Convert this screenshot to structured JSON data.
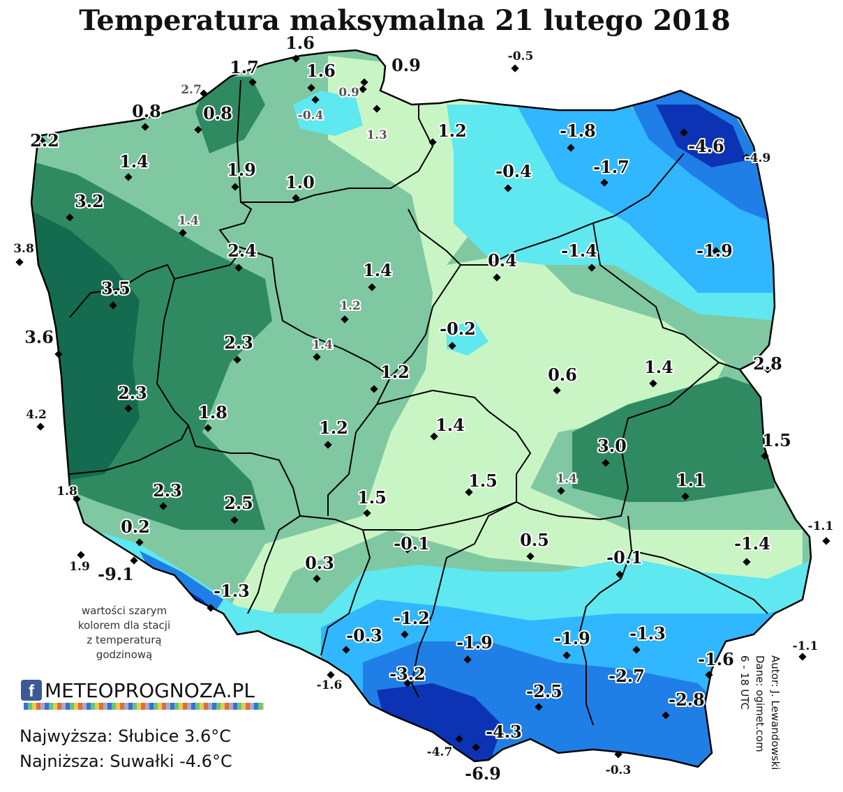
{
  "title": "Temperatura maksymalna 21 lutego 2018",
  "colors": {
    "very_warm": "#156b4f",
    "warm": "#2f8a62",
    "mild_green": "#7fc8a2",
    "light_green": "#c9f5c4",
    "cyan": "#5fe8f0",
    "light_blue": "#31b7ff",
    "blue": "#1f7fe6",
    "dark_blue": "#0b33b4"
  },
  "values": [
    {
      "text": "1.6",
      "style": "normal"
    },
    {
      "text": "1.7",
      "style": "normal"
    },
    {
      "text": "1.6",
      "style": "normal"
    },
    {
      "text": "0.9",
      "style": "normal"
    },
    {
      "text": "-0.5",
      "style": "small"
    },
    {
      "text": "2.7",
      "style": "gray"
    },
    {
      "text": "0.9",
      "style": "gray"
    },
    {
      "text": "0.8",
      "style": "normal"
    },
    {
      "text": "0.8",
      "style": "normal"
    },
    {
      "text": "-0.4",
      "style": "gray"
    },
    {
      "text": "1.3",
      "style": "gray"
    },
    {
      "text": "1.2",
      "style": "normal"
    },
    {
      "text": "-1.8",
      "style": "normal"
    },
    {
      "text": "-4.6",
      "style": "normal"
    },
    {
      "text": "-4.9",
      "style": "small"
    },
    {
      "text": "2.2",
      "style": "normal"
    },
    {
      "text": "1.4",
      "style": "normal"
    },
    {
      "text": "1.9",
      "style": "normal"
    },
    {
      "text": "1.0",
      "style": "normal"
    },
    {
      "text": "-0.4",
      "style": "normal"
    },
    {
      "text": "-1.7",
      "style": "normal"
    },
    {
      "text": "3.2",
      "style": "normal"
    },
    {
      "text": "1.4",
      "style": "gray"
    },
    {
      "text": "3.8",
      "style": "small"
    },
    {
      "text": "2.4",
      "style": "normal"
    },
    {
      "text": "1.4",
      "style": "normal"
    },
    {
      "text": "0.4",
      "style": "normal"
    },
    {
      "text": "-1.4",
      "style": "normal"
    },
    {
      "text": "-1.9",
      "style": "normal"
    },
    {
      "text": "3.5",
      "style": "normal"
    },
    {
      "text": "1.2",
      "style": "gray"
    },
    {
      "text": "-0.2",
      "style": "normal"
    },
    {
      "text": "3.6",
      "style": "normal"
    },
    {
      "text": "2.3",
      "style": "normal"
    },
    {
      "text": "1.4",
      "style": "gray"
    },
    {
      "text": "1.2",
      "style": "normal"
    },
    {
      "text": "0.6",
      "style": "normal"
    },
    {
      "text": "1.4",
      "style": "normal"
    },
    {
      "text": "2.8",
      "style": "normal"
    },
    {
      "text": "2.3",
      "style": "normal"
    },
    {
      "text": "4.2",
      "style": "small"
    },
    {
      "text": "1.8",
      "style": "normal"
    },
    {
      "text": "1.2",
      "style": "normal"
    },
    {
      "text": "1.4",
      "style": "normal"
    },
    {
      "text": "1.5",
      "style": "normal"
    },
    {
      "text": "3.0",
      "style": "normal"
    },
    {
      "text": "1.5",
      "style": "normal"
    },
    {
      "text": "1.4",
      "style": "gray"
    },
    {
      "text": "1.1",
      "style": "normal"
    },
    {
      "text": "1.8",
      "style": "small"
    },
    {
      "text": "2.3",
      "style": "normal"
    },
    {
      "text": "2.5",
      "style": "normal"
    },
    {
      "text": "1.5",
      "style": "normal"
    },
    {
      "text": "0.2",
      "style": "normal"
    },
    {
      "text": "-0.1",
      "style": "normal"
    },
    {
      "text": "0.5",
      "style": "normal"
    },
    {
      "text": "-0.1",
      "style": "normal"
    },
    {
      "text": "-1.4",
      "style": "normal"
    },
    {
      "text": "-1.1",
      "style": "small"
    },
    {
      "text": "1.9",
      "style": "small"
    },
    {
      "text": "-9.1",
      "style": "normal"
    },
    {
      "text": "0.3",
      "style": "normal"
    },
    {
      "text": "-1.3",
      "style": "normal"
    },
    {
      "text": "-1.2",
      "style": "normal"
    },
    {
      "text": "-0.3",
      "style": "normal"
    },
    {
      "text": "-1.9",
      "style": "normal"
    },
    {
      "text": "-1.9",
      "style": "normal"
    },
    {
      "text": "-1.3",
      "style": "normal"
    },
    {
      "text": "-1.1",
      "style": "small"
    },
    {
      "text": "-1.6",
      "style": "normal"
    },
    {
      "text": "-1.6",
      "style": "small"
    },
    {
      "text": "-3.2",
      "style": "normal"
    },
    {
      "text": "-2.7",
      "style": "normal"
    },
    {
      "text": "-2.5",
      "style": "normal"
    },
    {
      "text": "-2.8",
      "style": "normal"
    },
    {
      "text": "-4.3",
      "style": "normal"
    },
    {
      "text": "-4.7",
      "style": "small"
    },
    {
      "text": "-0.3",
      "style": "small"
    },
    {
      "text": "-6.9",
      "style": "normal"
    }
  ],
  "note_lines": [
    "wartości szarym",
    "kolorem dla stacji",
    "z temperaturą",
    "godzinową"
  ],
  "logo": {
    "fb": "f",
    "text": "METEOPROGNOZA.PL"
  },
  "extremes": {
    "max": "Najwyższa: Słubice 3.6°C",
    "min": "Najniższa: Suwałki  -4.6°C"
  },
  "credits": [
    "Autor: J. Lewandowski",
    "Dane: ogimet.com",
    "6 - 18 UTC"
  ]
}
